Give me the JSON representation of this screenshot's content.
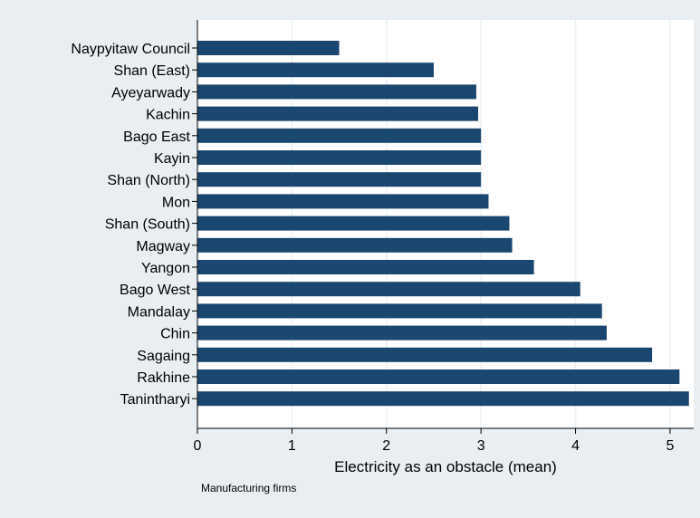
{
  "chart_data": {
    "type": "bar",
    "orientation": "horizontal",
    "categories": [
      "Naypyitaw  Council",
      "Shan (East)",
      "Ayeyarwady",
      "Kachin",
      "Bago East",
      "Kayin",
      "Shan (North)",
      "Mon",
      "Shan (South)",
      "Magway",
      "Yangon",
      "Bago West",
      "Mandalay",
      "Chin",
      "Sagaing",
      "Rakhine",
      "Tanintharyi"
    ],
    "values": [
      1.5,
      2.5,
      2.95,
      2.97,
      3.0,
      3.0,
      3.0,
      3.08,
      3.3,
      3.33,
      3.56,
      4.05,
      4.28,
      4.33,
      4.81,
      5.1,
      5.2
    ],
    "xlabel": "Electricity as an obstacle (mean)",
    "ylabel": "",
    "title": "",
    "note": "Manufacturing firms",
    "xlim": [
      0,
      5.25
    ],
    "xticks": [
      "0",
      "1",
      "2",
      "3",
      "4",
      "5"
    ],
    "grid": "vertical",
    "legend": "none",
    "colors": {
      "bar": "#1a476f",
      "background": "#e8eef2",
      "plot_background": "#ffffff",
      "grid": "#eaf2f3",
      "text": "#000000"
    }
  }
}
